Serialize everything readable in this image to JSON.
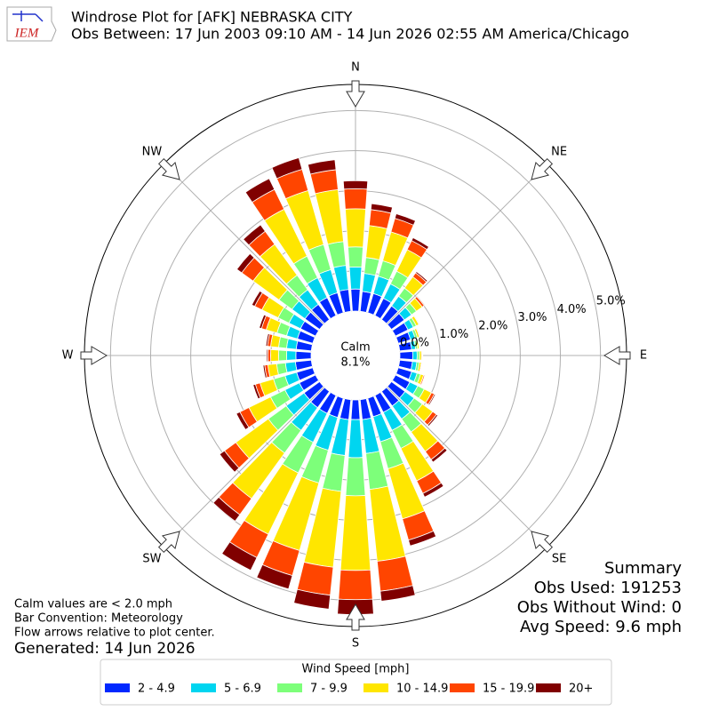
{
  "chart_data": {
    "type": "windrose",
    "logo_text": "IEM",
    "title": "Windrose Plot for [AFK] NEBRASKA CITY",
    "subtitle": "Obs Between: 17 Jun 2003 09:10 AM - 14 Jun 2026 02:55 AM America/Chicago",
    "x": [
      0,
      10,
      20,
      30,
      40,
      50,
      60,
      70,
      80,
      90,
      100,
      110,
      120,
      130,
      140,
      150,
      160,
      170,
      180,
      190,
      200,
      210,
      220,
      230,
      240,
      250,
      260,
      270,
      280,
      290,
      300,
      310,
      320,
      330,
      340,
      350
    ],
    "series": [
      {
        "name": "2 - 4.9",
        "color": "#0028ff",
        "values": [
          0.55,
          0.5,
          0.5,
          0.48,
          0.42,
          0.4,
          0.35,
          0.32,
          0.3,
          0.32,
          0.32,
          0.35,
          0.4,
          0.42,
          0.45,
          0.47,
          0.48,
          0.5,
          0.49,
          0.5,
          0.5,
          0.5,
          0.5,
          0.48,
          0.45,
          0.42,
          0.4,
          0.38,
          0.38,
          0.4,
          0.42,
          0.45,
          0.47,
          0.5,
          0.52,
          0.55
        ]
      },
      {
        "name": "5 - 6.9",
        "color": "#00d5f0",
        "values": [
          0.55,
          0.45,
          0.45,
          0.4,
          0.3,
          0.22,
          0.15,
          0.12,
          0.1,
          0.11,
          0.11,
          0.14,
          0.22,
          0.28,
          0.4,
          0.5,
          0.65,
          0.85,
          0.95,
          0.9,
          0.85,
          0.8,
          0.7,
          0.55,
          0.4,
          0.3,
          0.25,
          0.23,
          0.24,
          0.28,
          0.32,
          0.4,
          0.45,
          0.55,
          0.6,
          0.6
        ]
      },
      {
        "name": "7 - 9.9",
        "color": "#7dff7a",
        "values": [
          0.5,
          0.4,
          0.4,
          0.35,
          0.25,
          0.15,
          0.08,
          0.06,
          0.05,
          0.06,
          0.06,
          0.09,
          0.18,
          0.25,
          0.4,
          0.5,
          0.7,
          0.9,
          0.95,
          0.9,
          0.85,
          0.85,
          0.7,
          0.55,
          0.4,
          0.3,
          0.22,
          0.2,
          0.2,
          0.25,
          0.3,
          0.4,
          0.45,
          0.6,
          0.65,
          0.6
        ]
      },
      {
        "name": "10 - 14.9",
        "color": "#ffe600",
        "values": [
          0.95,
          0.8,
          0.75,
          0.6,
          0.35,
          0.18,
          0.07,
          0.05,
          0.04,
          0.05,
          0.05,
          0.08,
          0.2,
          0.32,
          0.6,
          0.9,
          1.3,
          1.8,
          1.86,
          1.9,
          1.75,
          1.7,
          1.4,
          1.0,
          0.6,
          0.35,
          0.22,
          0.2,
          0.2,
          0.28,
          0.45,
          0.8,
          0.95,
          1.3,
          1.4,
          1.3
        ]
      },
      {
        "name": "15 - 19.9",
        "color": "#ff4500",
        "values": [
          0.5,
          0.4,
          0.35,
          0.25,
          0.12,
          0.06,
          0.02,
          0.02,
          0.01,
          0.02,
          0.02,
          0.03,
          0.08,
          0.12,
          0.25,
          0.35,
          0.55,
          0.75,
          0.73,
          0.7,
          0.65,
          0.65,
          0.5,
          0.35,
          0.25,
          0.12,
          0.08,
          0.07,
          0.08,
          0.12,
          0.2,
          0.35,
          0.4,
          0.55,
          0.55,
          0.5
        ]
      },
      {
        "name": "20+",
        "color": "#800000",
        "values": [
          0.2,
          0.15,
          0.12,
          0.08,
          0.04,
          0.02,
          0.01,
          0.01,
          0.01,
          0.01,
          0.01,
          0.01,
          0.03,
          0.04,
          0.08,
          0.1,
          0.15,
          0.25,
          0.37,
          0.35,
          0.35,
          0.35,
          0.2,
          0.15,
          0.1,
          0.06,
          0.04,
          0.03,
          0.04,
          0.06,
          0.08,
          0.15,
          0.2,
          0.3,
          0.3,
          0.25
        ]
      }
    ],
    "rlim": [
      0,
      5.65
    ],
    "rticks": [
      {
        "value": 0,
        "label": "0.0%"
      },
      {
        "value": 1,
        "label": "1.0%"
      },
      {
        "value": 2,
        "label": "2.0%"
      },
      {
        "value": 3,
        "label": "3.0%"
      },
      {
        "value": 4,
        "label": "4.0%"
      },
      {
        "value": 5,
        "label": "5.0%"
      }
    ],
    "compass": [
      {
        "value": 0,
        "label": "N"
      },
      {
        "value": 45,
        "label": "NE"
      },
      {
        "value": 90,
        "label": "E"
      },
      {
        "value": 135,
        "label": "SE"
      },
      {
        "value": 180,
        "label": "S"
      },
      {
        "value": 225,
        "label": "SW"
      },
      {
        "value": 270,
        "label": "W"
      },
      {
        "value": 315,
        "label": "NW"
      }
    ],
    "calm": {
      "label": "Calm",
      "value": 8.1,
      "value_label": "8.1%"
    },
    "notes": [
      "Calm values are < 2.0 mph",
      "Bar Convention: Meteorology",
      "Flow arrows relative to plot center."
    ],
    "generated": "Generated: 14 Jun 2026",
    "summary": [
      "Summary",
      "Obs Used: 191253",
      "Obs Without Wind: 0",
      "Avg Speed: 9.6 mph"
    ],
    "legend_title": "Wind Speed [mph]",
    "grid": true
  }
}
